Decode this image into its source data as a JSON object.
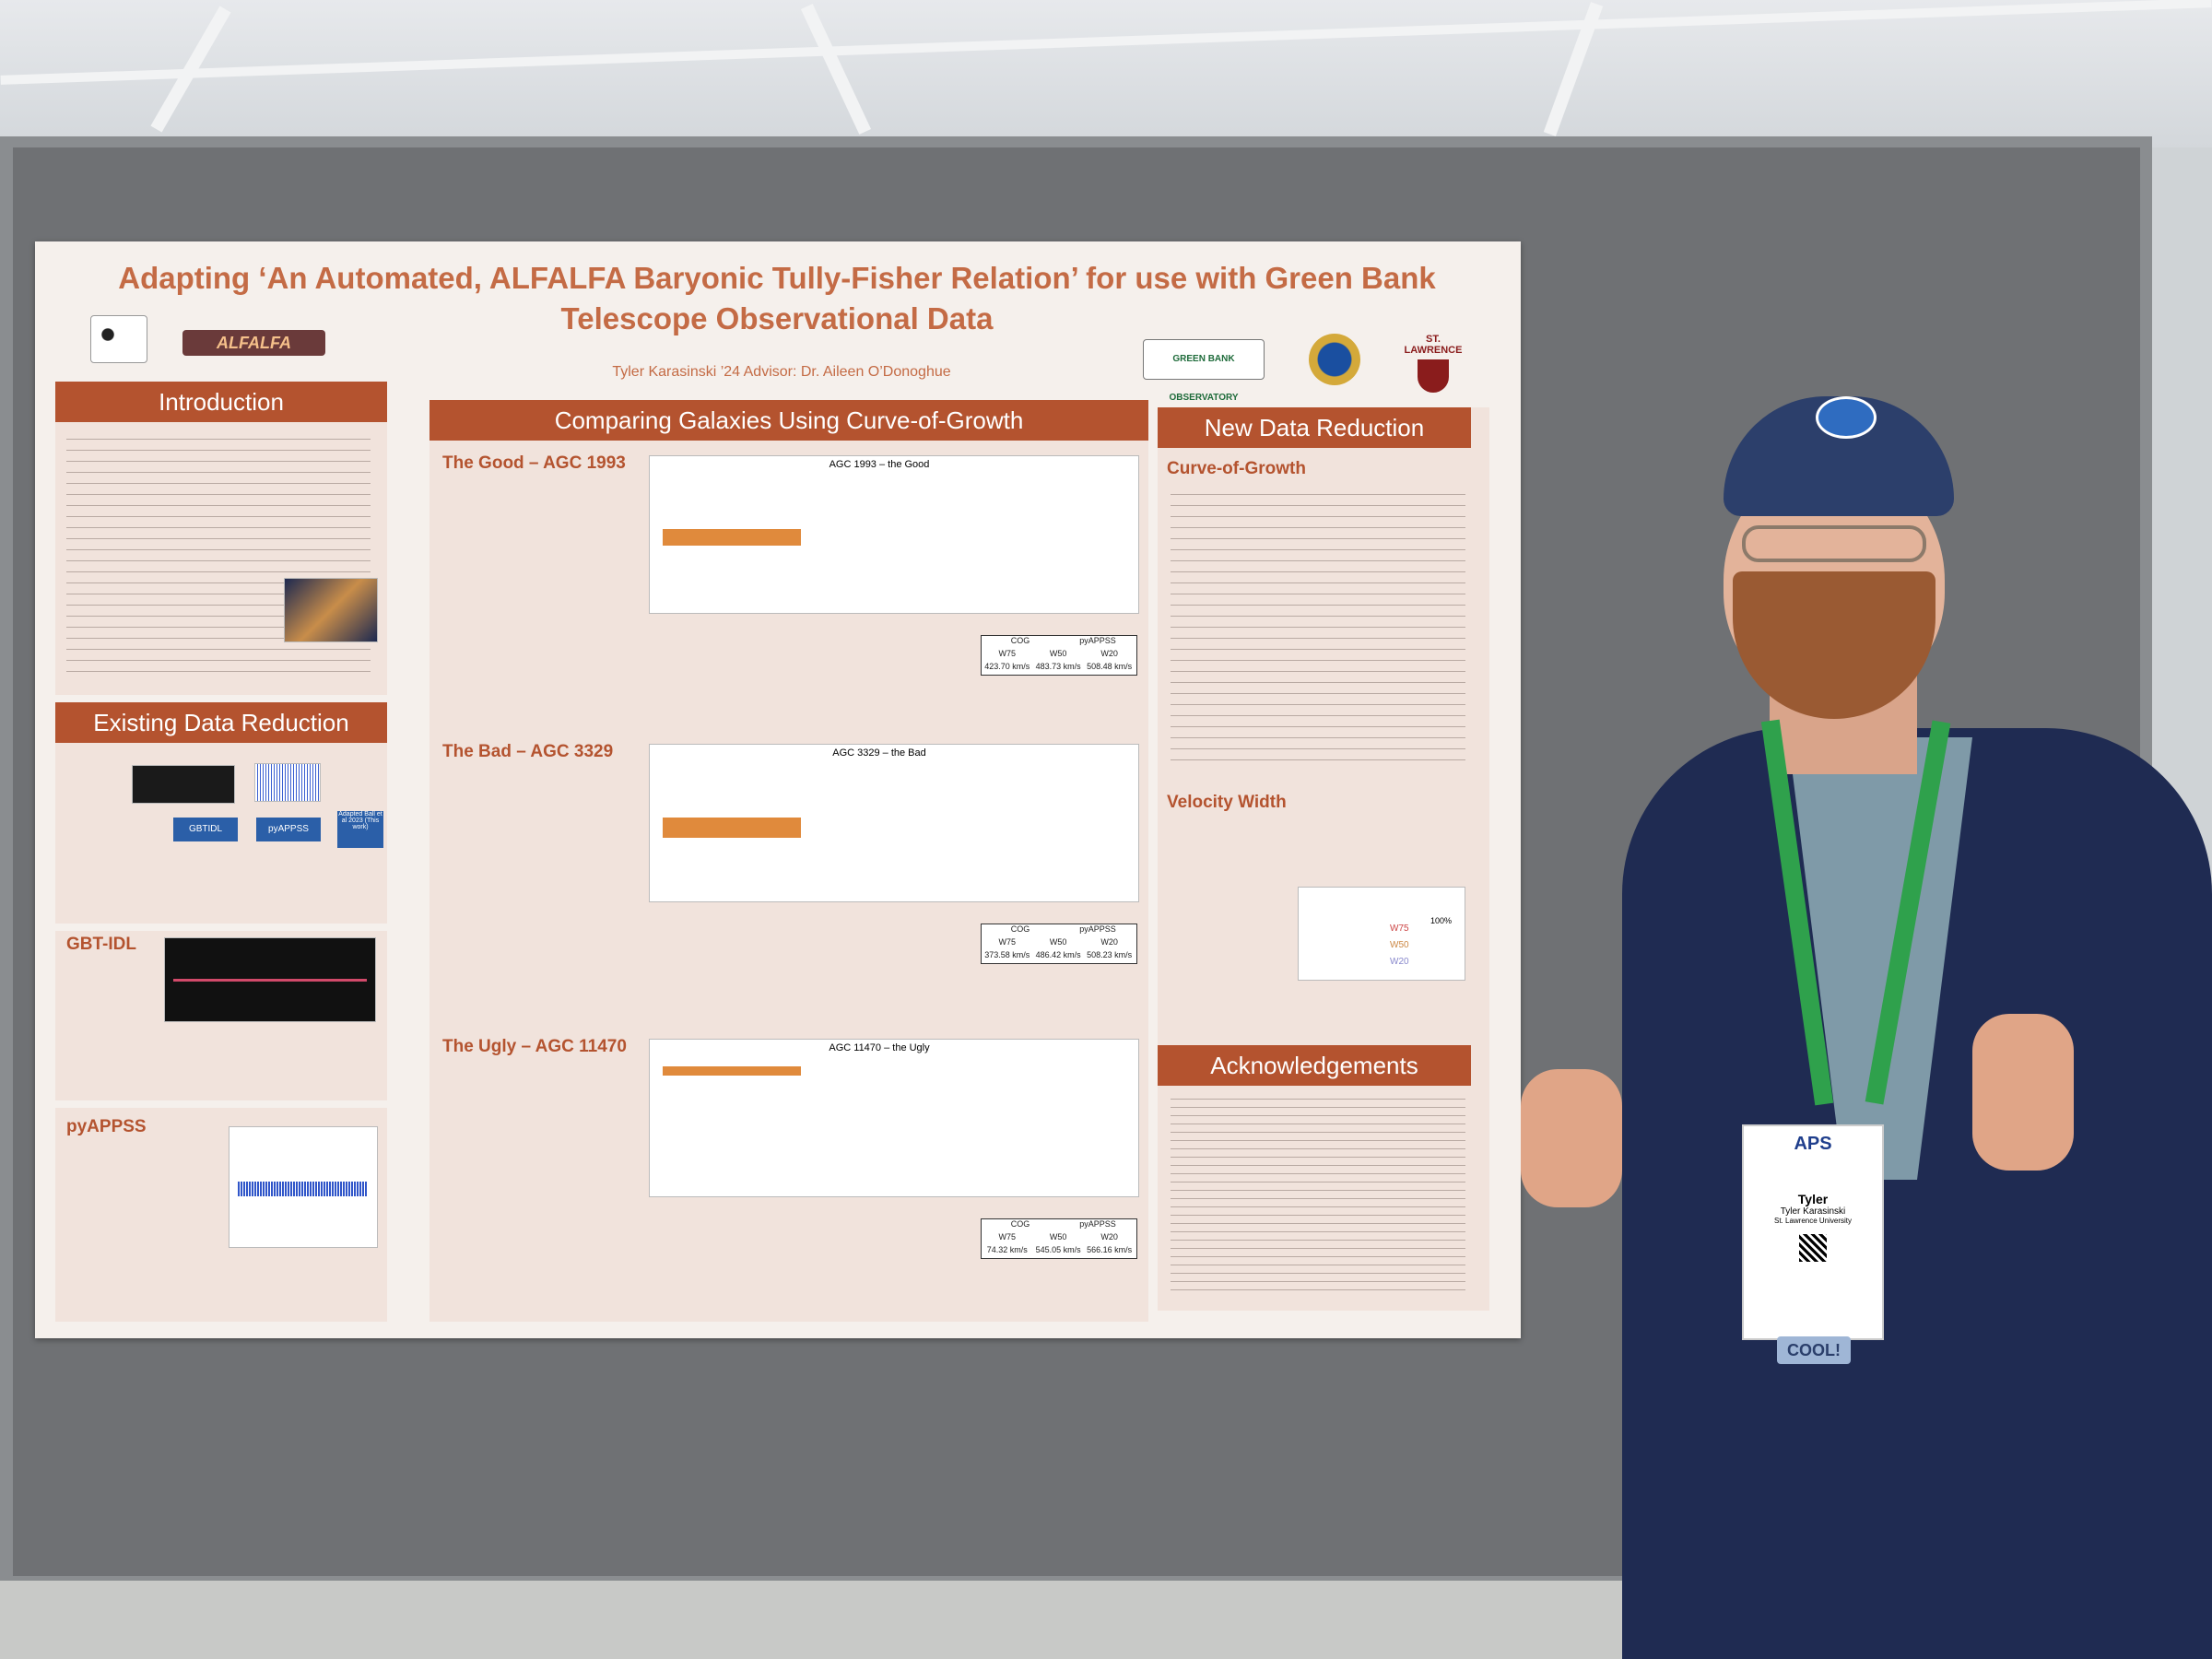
{
  "poster": {
    "title": "Adapting ‘An Automated, ALFALFA Baryonic Tully-Fisher Relation’ for use with Green Bank Telescope Observational Data",
    "authors": "Tyler Karasinski ’24     Advisor: Dr. Aileen O’Donoghue",
    "logos": {
      "alfalfa": "ALFALFA",
      "gbo": "GREEN BANK OBSERVATORY",
      "stlawrence": "ST. LAWRENCE"
    },
    "sections": {
      "introduction": "Introduction",
      "existing": "Existing Data Reduction",
      "gbtidl": "GBT-IDL",
      "pyappss": "pyAPPSS",
      "comparing": "Comparing Galaxies Using Curve-of-Growth",
      "new": "New Data Reduction",
      "cog": "Curve-of-Growth",
      "velocity": "Velocity Width",
      "ack": "Acknowledgements"
    },
    "cases": [
      {
        "title": "The Good – AGC 1993",
        "plot": "AGC 1993 – the Good",
        "w75": "423.70 km/s",
        "w50": "483.73 km/s",
        "w20": "508.48 km/s"
      },
      {
        "title": "The Bad – AGC 3329",
        "plot": "AGC 3329 – the Bad",
        "w75": "373.58 km/s",
        "w50": "486.42 km/s",
        "w20": "508.23 km/s"
      },
      {
        "title": "The Ugly – AGC 11470",
        "plot": "AGC 11470 – the Ugly",
        "w75": "74.32 km/s",
        "w50": "545.05 km/s",
        "w20": "566.16 km/s"
      }
    ],
    "table_headers": {
      "cog": "COG",
      "pyappss": "pyAPPSS",
      "w75": "W75",
      "w50": "W50",
      "w20": "W20"
    },
    "flow": {
      "gbtidl": "GBTIDL",
      "pyappss": "pyAPPSS",
      "ball": "Adapted Ball et al 2023 (This work)"
    },
    "velocity_labels": {
      "w75": "W75",
      "w50": "W50",
      "w20": "W20",
      "p100": "100%"
    }
  },
  "badge": {
    "org": "APS",
    "name": "Tyler",
    "full": "Tyler Karasinski",
    "inst": "St. Lawrence University",
    "strap": "COOL!"
  },
  "colors": {
    "accent": "#b4532f",
    "jacket": "#1f2b52",
    "cap": "#2c3f6b"
  }
}
